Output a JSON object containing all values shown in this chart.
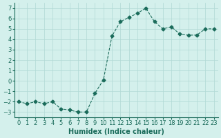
{
  "x": [
    0,
    1,
    2,
    3,
    4,
    5,
    6,
    7,
    8,
    9,
    10,
    11,
    12,
    13,
    14,
    15,
    16,
    17,
    18,
    19,
    20,
    21,
    22,
    23
  ],
  "y": [
    -2.0,
    -2.2,
    -2.0,
    -2.2,
    -2.0,
    -2.7,
    -2.8,
    -3.0,
    -3.0,
    -1.2,
    0.1,
    4.3,
    5.7,
    6.1,
    6.5,
    7.0,
    5.7,
    5.0,
    5.2,
    4.5,
    4.4,
    4.4,
    5.0,
    5.0
  ],
  "line_color": "#1a6b5a",
  "marker_color": "#1a6b5a",
  "bg_color": "#d4f0ec",
  "grid_color": "#b0d8d4",
  "axis_color": "#1a6b5a",
  "xlabel": "Humidex (Indice chaleur)",
  "ylim": [
    -3.5,
    7.5
  ],
  "xlim": [
    -0.5,
    23.5
  ],
  "yticks": [
    -3,
    -2,
    -1,
    0,
    1,
    2,
    3,
    4,
    5,
    6,
    7
  ],
  "xticks": [
    0,
    1,
    2,
    3,
    4,
    5,
    6,
    7,
    8,
    9,
    10,
    11,
    12,
    13,
    14,
    15,
    16,
    17,
    18,
    19,
    20,
    21,
    22,
    23
  ],
  "tick_fontsize": 6,
  "label_fontsize": 7,
  "line_width": 0.8
}
